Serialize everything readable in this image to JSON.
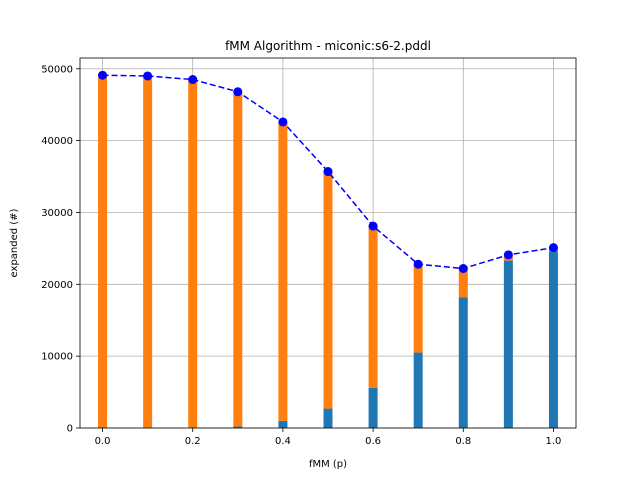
{
  "chart_data": {
    "type": "bar",
    "title": "fMM Algorithm - miconic:s6-2.pddl",
    "xlabel": "fMM (p)",
    "ylabel": "expanded (#)",
    "x": [
      0.0,
      0.1,
      0.2,
      0.3,
      0.4,
      0.5,
      0.6,
      0.7,
      0.8,
      0.9,
      1.0
    ],
    "xlim": [
      -0.05,
      1.05
    ],
    "ylim": [
      0,
      51500
    ],
    "xticks": [
      0.0,
      0.2,
      0.4,
      0.6,
      0.8,
      1.0
    ],
    "xtick_labels": [
      "0.0",
      "0.2",
      "0.4",
      "0.6",
      "0.8",
      "1.0"
    ],
    "yticks": [
      0,
      10000,
      20000,
      30000,
      40000,
      50000
    ],
    "ytick_labels": [
      "0",
      "10000",
      "20000",
      "30000",
      "40000",
      "50000"
    ],
    "grid": true,
    "series": [
      {
        "kind": "bar",
        "color": "#1f77b4",
        "values": [
          0,
          0,
          0,
          200,
          1000,
          2700,
          5600,
          10500,
          18200,
          23300,
          24600
        ]
      },
      {
        "kind": "bar-stacked",
        "color": "#ff7f0e",
        "values": [
          49100,
          49000,
          48500,
          46600,
          41600,
          33000,
          22500,
          12300,
          4000,
          800,
          500
        ]
      },
      {
        "kind": "line",
        "style": "dashed",
        "marker": "circle",
        "color": "#0000ff",
        "values": [
          49100,
          49000,
          48500,
          46800,
          42600,
          35700,
          28100,
          22800,
          22200,
          24100,
          25100
        ]
      }
    ]
  }
}
